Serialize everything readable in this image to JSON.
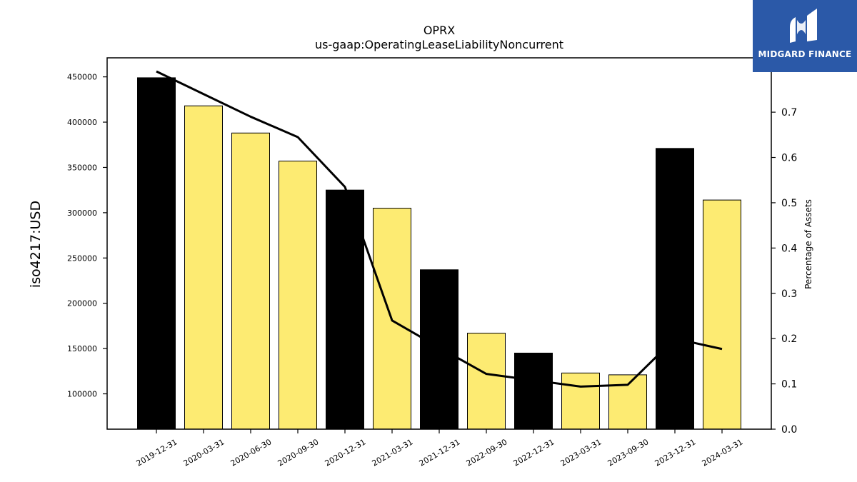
{
  "chart_data": {
    "type": "bar",
    "title": "OPRX",
    "subtitle": "us-gaap:OperatingLeaseLiabilityNoncurrent",
    "ylabel": "iso4217:USD",
    "y2label": "Percentage of Assets",
    "categories": [
      "2019-12-31",
      "2020-03-31",
      "2020-06-30",
      "2020-09-30",
      "2020-12-31",
      "2021-03-31",
      "2021-12-31",
      "2022-09-30",
      "2022-12-31",
      "2023-03-31",
      "2023-09-30",
      "2023-12-31",
      "2024-03-31"
    ],
    "bar_colors": [
      "#000000",
      "#fdeb72",
      "#fdeb72",
      "#fdeb72",
      "#000000",
      "#fdeb72",
      "#000000",
      "#fdeb72",
      "#000000",
      "#fdeb72",
      "#fdeb72",
      "#000000",
      "#fdeb72"
    ],
    "series": [
      {
        "values": [
          449000,
          418000,
          388000,
          357000,
          325000,
          305000,
          237000,
          167000,
          145000,
          123000,
          121000,
          371000,
          314000
        ]
      },
      {
        "axis": "right",
        "type": "line",
        "color": "#000000",
        "values": [
          0.79,
          0.74,
          0.69,
          0.645,
          0.535,
          0.24,
          0.18,
          0.122,
          0.108,
          0.094,
          0.098,
          0.2,
          0.177
        ]
      }
    ],
    "ylim": [
      61000,
      471000
    ],
    "y2lim": [
      0.0,
      0.82
    ],
    "yticks": [
      100000,
      150000,
      200000,
      250000,
      300000,
      350000,
      400000,
      450000
    ],
    "y2ticks": [
      0.0,
      0.1,
      0.2,
      0.3,
      0.4,
      0.5,
      0.6,
      0.7,
      0.8
    ],
    "grid": false,
    "legend": "none"
  },
  "logo": {
    "text": "MIDGARD FINANCE"
  }
}
